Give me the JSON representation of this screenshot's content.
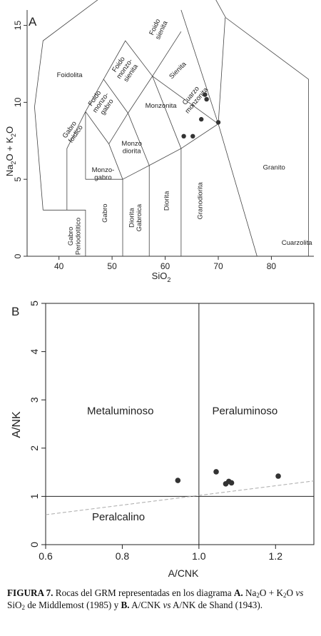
{
  "chart_data": [
    {
      "type": "scatter",
      "panel_label": "A",
      "xlabel_main": "SiO",
      "xlabel_sub": "2",
      "ylabel_parts": [
        {
          "t": "Na",
          "s": false
        },
        {
          "t": "2",
          "s": true
        },
        {
          "t": "O + K",
          "s": false
        },
        {
          "t": "2",
          "s": true
        },
        {
          "t": "O",
          "s": false
        }
      ],
      "xlim": [
        34,
        88
      ],
      "ylim": [
        0,
        16
      ],
      "xticks": [
        40,
        50,
        60,
        70,
        80
      ],
      "yticks": [
        0,
        5,
        10,
        15
      ],
      "points": [
        {
          "x": 63.5,
          "y": 7.8
        },
        {
          "x": 65.2,
          "y": 7.8
        },
        {
          "x": 66.8,
          "y": 8.9
        },
        {
          "x": 67.5,
          "y": 10.5
        },
        {
          "x": 67.8,
          "y": 10.2
        },
        {
          "x": 70.0,
          "y": 8.7
        }
      ],
      "fields": [
        {
          "name": "Foidolita",
          "lines": [
            "Foidolita"
          ],
          "x": 42,
          "y": 11.8,
          "rot": 0
        },
        {
          "name": "Foido sienita",
          "lines": [
            "Foido",
            "sienita"
          ],
          "x": 58.6,
          "y": 14.8,
          "rot": -65
        },
        {
          "name": "Sienita",
          "lines": [
            "Sienita"
          ],
          "x": 62.3,
          "y": 12.1,
          "rot": -45
        },
        {
          "name": "Foido monzo-sienita",
          "lines": [
            "Foido",
            "monzo-",
            "sienita"
          ],
          "x": 52.3,
          "y": 12.2,
          "rot": -55
        },
        {
          "name": "Foido monzo-gabro",
          "lines": [
            "Foido",
            "monzo-",
            "gabro"
          ],
          "x": 47.8,
          "y": 10.0,
          "rot": -55
        },
        {
          "name": "Gabro foidico",
          "lines": [
            "Gabro",
            "foidico"
          ],
          "x": 42.5,
          "y": 8.1,
          "rot": -55
        },
        {
          "name": "Cuarzo monzonita",
          "lines": [
            "Cuarzo",
            "monzonita"
          ],
          "x": 65.3,
          "y": 10.3,
          "rot": -50
        },
        {
          "name": "Monzonita",
          "lines": [
            "Monzonita"
          ],
          "x": 59.2,
          "y": 9.8,
          "rot": 0
        },
        {
          "name": "Monzo diorita",
          "lines": [
            "Monzo",
            "diorita"
          ],
          "x": 53.7,
          "y": 7.1,
          "rot": 0
        },
        {
          "name": "Monzo-gabro",
          "lines": [
            "Monzo-",
            "gabro"
          ],
          "x": 48.3,
          "y": 5.4,
          "rot": 0
        },
        {
          "name": "Gabro Periodotitico",
          "lines": [
            "Gabro",
            "Periodotitico"
          ],
          "x": 42.8,
          "y": 1.3,
          "rot": -90
        },
        {
          "name": "Gabro",
          "lines": [
            "Gabro"
          ],
          "x": 48.6,
          "y": 2.8,
          "rot": -90
        },
        {
          "name": "Diorita Gabroica",
          "lines": [
            "Diorita",
            "Gabroica"
          ],
          "x": 54.3,
          "y": 2.5,
          "rot": -90
        },
        {
          "name": "Diorita",
          "lines": [
            "Diorita"
          ],
          "x": 60.2,
          "y": 3.6,
          "rot": -90
        },
        {
          "name": "Granodiorita",
          "lines": [
            "Granodiorita"
          ],
          "x": 66.5,
          "y": 3.6,
          "rot": -90
        },
        {
          "name": "Granito",
          "lines": [
            "Granito"
          ],
          "x": 80.5,
          "y": 5.8,
          "rot": 0
        },
        {
          "name": "Cuarzolita",
          "lines": [
            "Cuarzolita"
          ],
          "x": 84.8,
          "y": 0.9,
          "rot": 0
        }
      ]
    },
    {
      "type": "scatter",
      "panel_label": "B",
      "xlabel": "A/CNK",
      "ylabel": "A/NK",
      "xlim": [
        0.6,
        1.3
      ],
      "ylim": [
        0,
        5
      ],
      "xticks": [
        0.6,
        0.8,
        1.0,
        1.2
      ],
      "xtick_labels": [
        "0.6",
        "0.8",
        "1.0",
        "1.2"
      ],
      "yticks": [
        0,
        1,
        2,
        3,
        4,
        5
      ],
      "points": [
        {
          "x": 0.945,
          "y": 1.33
        },
        {
          "x": 1.045,
          "y": 1.51
        },
        {
          "x": 1.07,
          "y": 1.26
        },
        {
          "x": 1.078,
          "y": 1.31
        },
        {
          "x": 1.085,
          "y": 1.28
        },
        {
          "x": 1.207,
          "y": 1.42
        }
      ],
      "region_labels": [
        {
          "text": "Metaluminoso",
          "x": 0.795,
          "y": 2.7
        },
        {
          "text": "Peraluminoso",
          "x": 1.12,
          "y": 2.7
        },
        {
          "text": "Peralcalino",
          "x": 0.79,
          "y": 0.5
        }
      ]
    }
  ],
  "caption": {
    "figura": "FIGURA 7.",
    "t1": " Rocas del GRM representadas en los diagrama ",
    "a": "A.",
    "na": "Na",
    "n2": "2",
    "t2": "O + K",
    "k2": "2",
    "t3": "O ",
    "vs1": "vs",
    "t4": " SiO",
    "si2": "2",
    "t5": " de Middlemost (1985) y ",
    "b": "B.",
    "t6": " A/CNK ",
    "vs2": "vs",
    "t7": " A/NK de Shand (1943)."
  }
}
